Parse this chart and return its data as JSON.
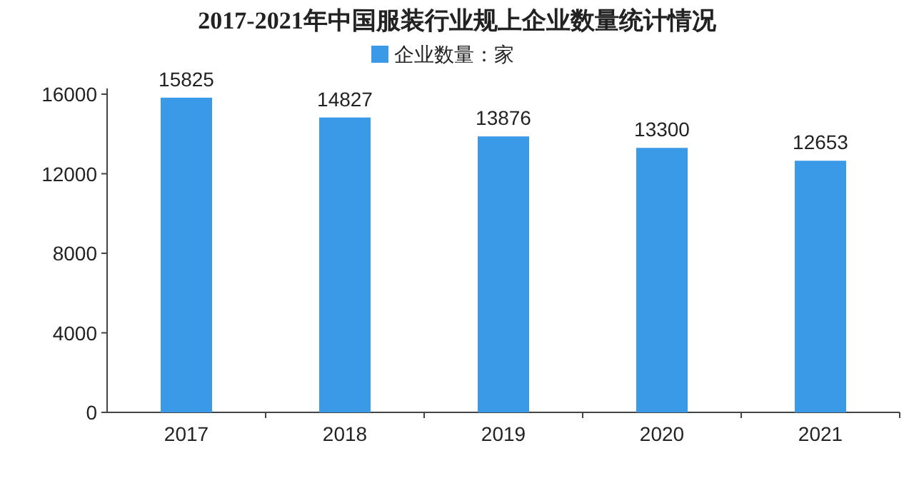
{
  "chart_data": {
    "type": "bar",
    "title": "2017-2021年中国服装行业规上企业数量统计情况",
    "categories": [
      "2017",
      "2018",
      "2019",
      "2020",
      "2021"
    ],
    "series": [
      {
        "name": "企业数量：家",
        "color": "#3a9ae8",
        "values": [
          15825,
          14827,
          13876,
          13300,
          12653
        ]
      }
    ],
    "ylim": [
      0,
      16000
    ],
    "yticks": [
      0,
      4000,
      8000,
      12000,
      16000
    ],
    "legend": "top",
    "data_labels": true
  }
}
